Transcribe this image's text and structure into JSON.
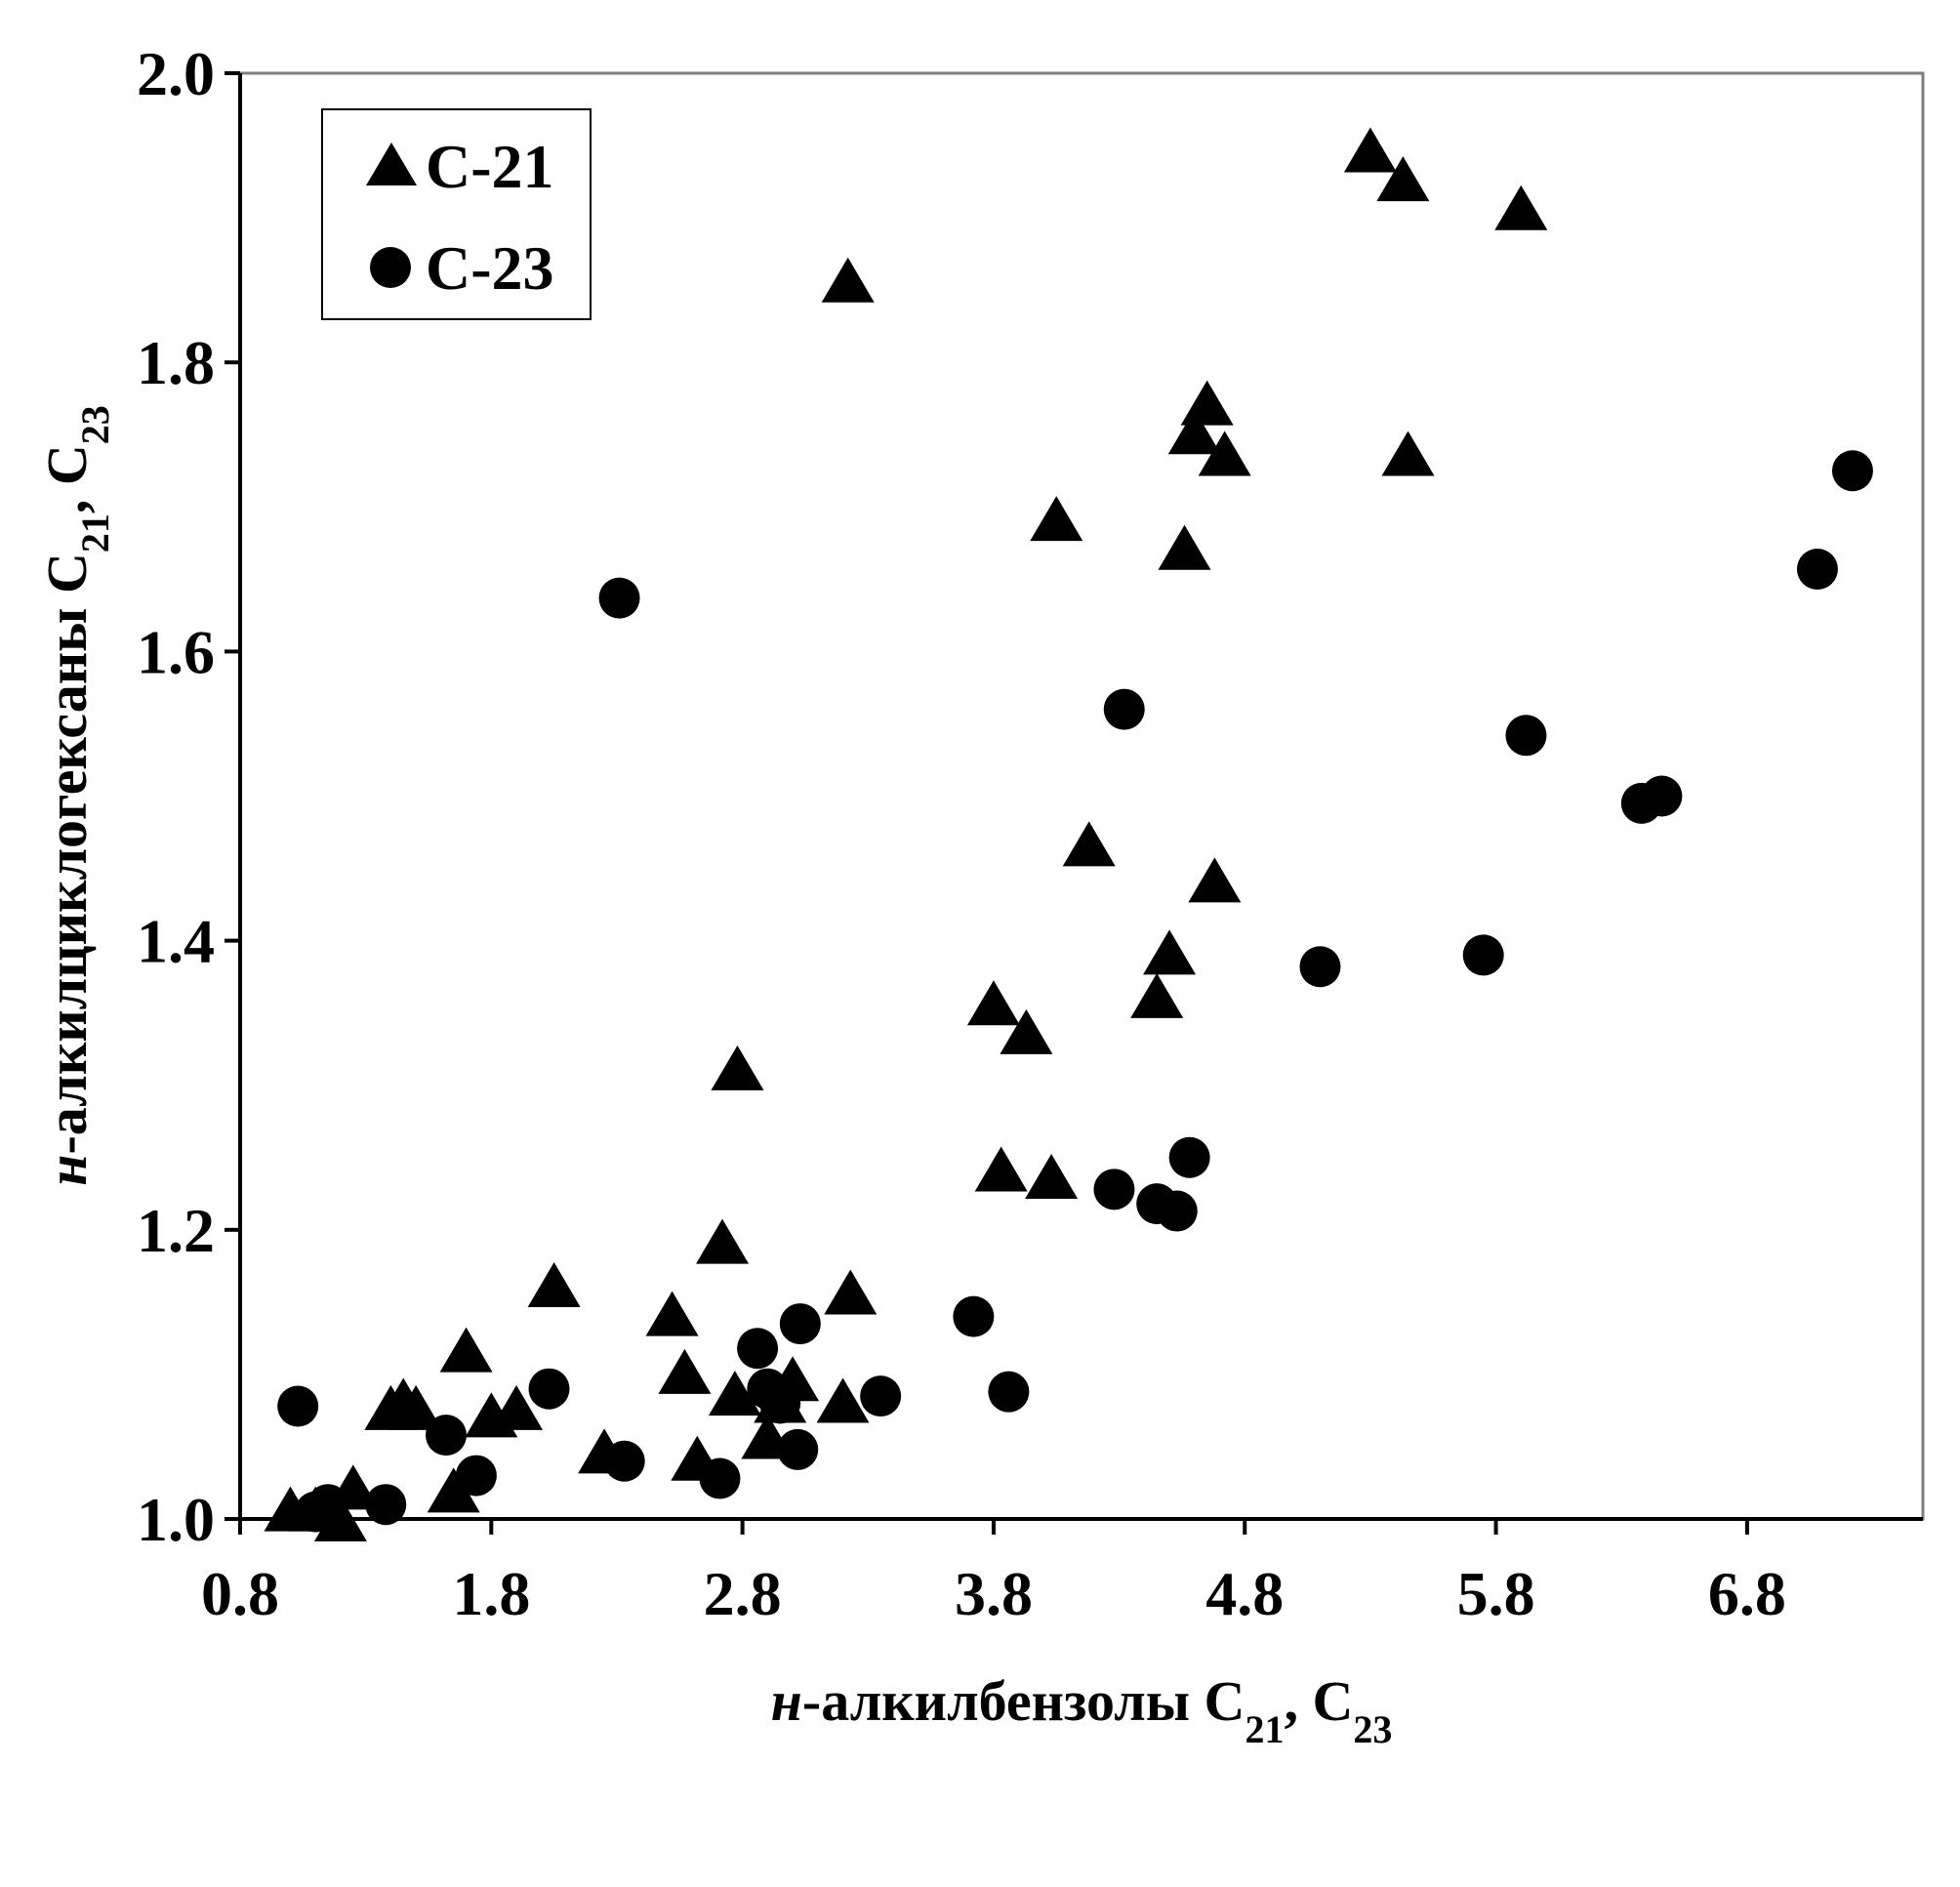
{
  "chart_data": {
    "type": "scatter",
    "xlabel_parts": [
      {
        "text": "н",
        "style": "italic"
      },
      {
        "text": "-алкилбензолы C"
      },
      {
        "text": "21",
        "sub": true
      },
      {
        "text": ", C"
      },
      {
        "text": "23",
        "sub": true
      }
    ],
    "ylabel_parts": [
      {
        "text": "н",
        "style": "italic"
      },
      {
        "text": "-алкилциклогексаны C"
      },
      {
        "text": "21",
        "sub": true
      },
      {
        "text": ", C"
      },
      {
        "text": "23",
        "sub": true
      }
    ],
    "xlim": [
      0.8,
      7.5
    ],
    "ylim": [
      1.0,
      2.0
    ],
    "x_ticks": [
      0.8,
      1.8,
      2.8,
      3.8,
      4.8,
      5.8,
      6.8
    ],
    "x_tick_labels": [
      "0.8",
      "1.8",
      "2.8",
      "3.8",
      "4.8",
      "5.8",
      "6.8"
    ],
    "y_ticks": [
      1.0,
      1.2,
      1.4,
      1.6,
      1.8,
      2.0
    ],
    "y_tick_labels": [
      "1.0",
      "1.2",
      "1.4",
      "1.6",
      "1.8",
      "2.0"
    ],
    "grid": false,
    "legend_position": "top-left",
    "series": [
      {
        "name": "C-21",
        "marker": "triangle",
        "color": "#000000",
        "x": [
          1.0,
          1.1,
          1.2,
          1.25,
          1.4,
          1.45,
          1.5,
          1.65,
          1.7,
          1.8,
          1.9,
          2.05,
          2.25,
          2.52,
          2.57,
          2.62,
          2.72,
          2.77,
          2.78,
          2.9,
          2.95,
          3.0,
          3.2,
          3.23,
          3.8,
          3.83,
          3.93,
          4.03,
          4.05,
          4.18,
          4.45,
          4.5,
          4.56,
          4.6,
          4.65,
          4.68,
          4.72,
          5.3,
          5.43,
          5.45,
          5.9,
          3.22
        ],
        "y": [
          1.005,
          1.005,
          0.998,
          1.02,
          1.075,
          1.08,
          1.075,
          1.018,
          1.115,
          1.07,
          1.075,
          1.16,
          1.045,
          1.14,
          1.1,
          1.04,
          1.19,
          1.085,
          1.31,
          1.055,
          1.08,
          1.095,
          1.08,
          1.155,
          1.355,
          1.24,
          1.335,
          1.235,
          1.69,
          1.465,
          1.36,
          1.39,
          1.67,
          1.75,
          1.77,
          1.44,
          1.735,
          1.945,
          1.925,
          1.735,
          1.905,
          1.855
        ]
      },
      {
        "name": "C-23",
        "marker": "circle",
        "color": "#000000",
        "x": [
          1.03,
          1.1,
          1.15,
          1.38,
          1.62,
          1.74,
          2.03,
          2.31,
          2.33,
          2.71,
          2.86,
          2.9,
          2.95,
          3.02,
          3.03,
          3.35,
          3.72,
          3.86,
          4.28,
          4.32,
          4.45,
          4.53,
          4.58,
          5.1,
          5.75,
          5.92,
          6.38,
          6.46,
          7.08,
          7.22
        ],
        "y": [
          1.078,
          1.005,
          1.01,
          1.01,
          1.058,
          1.03,
          1.09,
          1.637,
          1.04,
          1.028,
          1.118,
          1.09,
          1.08,
          1.048,
          1.135,
          1.085,
          1.14,
          1.088,
          1.228,
          1.56,
          1.218,
          1.213,
          1.25,
          1.382,
          1.39,
          1.542,
          1.495,
          1.5,
          1.657,
          1.725
        ]
      }
    ]
  }
}
